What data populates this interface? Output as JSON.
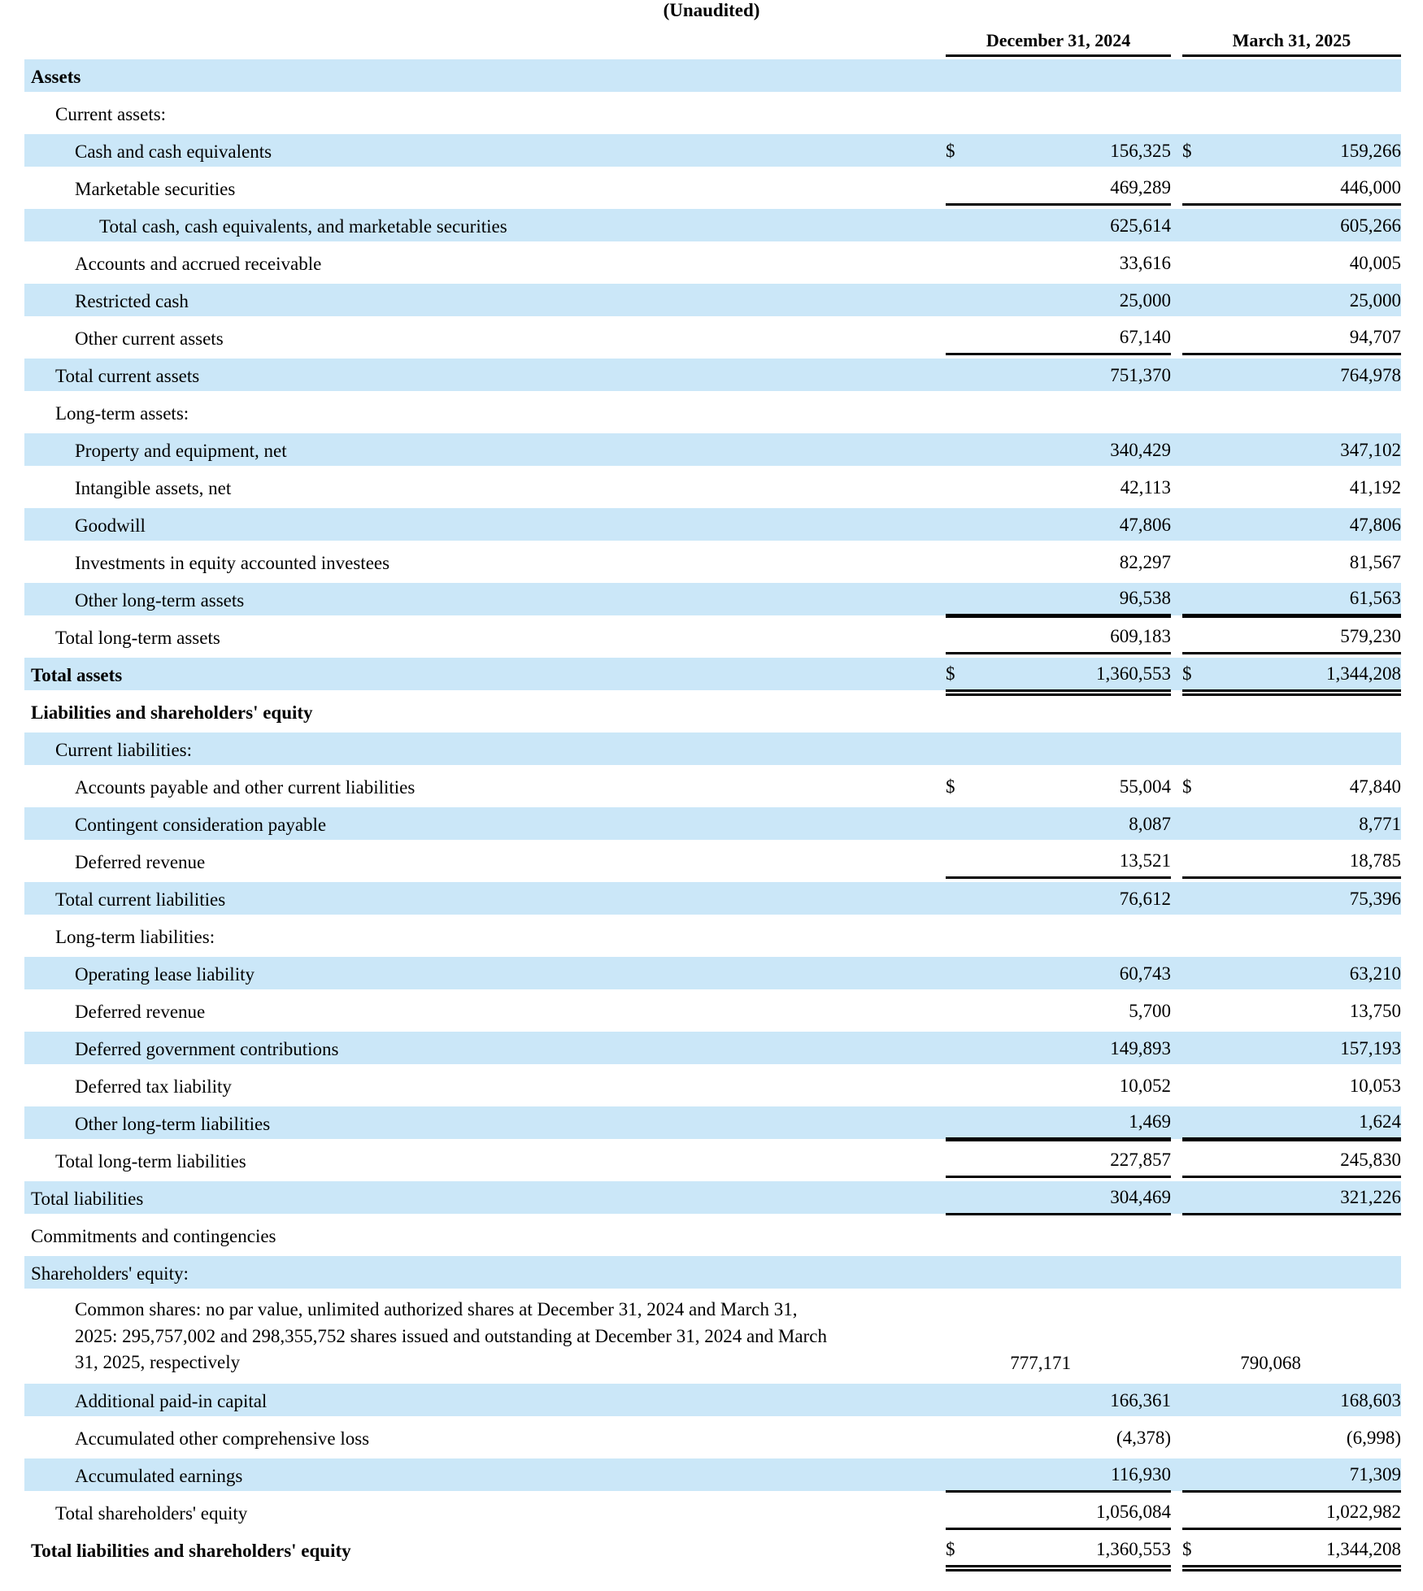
{
  "title": "(Unaudited)",
  "colors": {
    "row_highlight": "#cbe7f8",
    "text": "#000000",
    "rule": "#000000"
  },
  "table": {
    "currency_symbol": "$",
    "columns": [
      "December 31, 2024",
      "March 31, 2025"
    ],
    "rows": [
      {
        "label": "Assets",
        "indent": 0,
        "bold": true,
        "shaded": true,
        "d1": false,
        "v1": "",
        "d2": false,
        "v2": "",
        "rule": null
      },
      {
        "label": "Current assets:",
        "indent": 1,
        "bold": false,
        "shaded": false,
        "d1": false,
        "v1": "",
        "d2": false,
        "v2": "",
        "rule": null
      },
      {
        "label": "Cash and cash equivalents",
        "indent": 2,
        "bold": false,
        "shaded": true,
        "d1": true,
        "v1": "156,325",
        "d2": true,
        "v2": "159,266",
        "rule": null
      },
      {
        "label": "Marketable securities",
        "indent": 2,
        "bold": false,
        "shaded": false,
        "d1": false,
        "v1": "469,289",
        "d2": false,
        "v2": "446,000",
        "rule": "single"
      },
      {
        "label": "Total cash, cash equivalents, and marketable securities",
        "indent": 3,
        "bold": false,
        "shaded": true,
        "d1": false,
        "v1": "625,614",
        "d2": false,
        "v2": "605,266",
        "rule": null
      },
      {
        "label": "Accounts and accrued receivable",
        "indent": 2,
        "bold": false,
        "shaded": false,
        "d1": false,
        "v1": "33,616",
        "d2": false,
        "v2": "40,005",
        "rule": null
      },
      {
        "label": "Restricted cash",
        "indent": 2,
        "bold": false,
        "shaded": true,
        "d1": false,
        "v1": "25,000",
        "d2": false,
        "v2": "25,000",
        "rule": null
      },
      {
        "label": "Other current assets",
        "indent": 2,
        "bold": false,
        "shaded": false,
        "d1": false,
        "v1": "67,140",
        "d2": false,
        "v2": "94,707",
        "rule": "single"
      },
      {
        "label": "Total current assets",
        "indent": 1,
        "bold": false,
        "shaded": true,
        "d1": false,
        "v1": "751,370",
        "d2": false,
        "v2": "764,978",
        "rule": null
      },
      {
        "label": "Long-term assets:",
        "indent": 1,
        "bold": false,
        "shaded": false,
        "d1": false,
        "v1": "",
        "d2": false,
        "v2": "",
        "rule": null
      },
      {
        "label": "Property and equipment, net",
        "indent": 2,
        "bold": false,
        "shaded": true,
        "d1": false,
        "v1": "340,429",
        "d2": false,
        "v2": "347,102",
        "rule": null
      },
      {
        "label": "Intangible assets, net",
        "indent": 2,
        "bold": false,
        "shaded": false,
        "d1": false,
        "v1": "42,113",
        "d2": false,
        "v2": "41,192",
        "rule": null
      },
      {
        "label": "Goodwill",
        "indent": 2,
        "bold": false,
        "shaded": true,
        "d1": false,
        "v1": "47,806",
        "d2": false,
        "v2": "47,806",
        "rule": null
      },
      {
        "label": "Investments in equity accounted investees",
        "indent": 2,
        "bold": false,
        "shaded": false,
        "d1": false,
        "v1": "82,297",
        "d2": false,
        "v2": "81,567",
        "rule": null
      },
      {
        "label": "Other long-term assets",
        "indent": 2,
        "bold": false,
        "shaded": true,
        "d1": false,
        "v1": "96,538",
        "d2": false,
        "v2": "61,563",
        "rule": "thick"
      },
      {
        "label": "Total long-term assets",
        "indent": 1,
        "bold": false,
        "shaded": false,
        "d1": false,
        "v1": "609,183",
        "d2": false,
        "v2": "579,230",
        "rule": "single"
      },
      {
        "label": "Total assets",
        "indent": 0,
        "bold": true,
        "shaded": true,
        "d1": true,
        "v1": "1,360,553",
        "d2": true,
        "v2": "1,344,208",
        "rule": "double"
      },
      {
        "label": "Liabilities and shareholders' equity",
        "indent": 0,
        "bold": true,
        "shaded": false,
        "d1": false,
        "v1": "",
        "d2": false,
        "v2": "",
        "rule": null
      },
      {
        "label": "Current liabilities:",
        "indent": 1,
        "bold": false,
        "shaded": true,
        "d1": false,
        "v1": "",
        "d2": false,
        "v2": "",
        "rule": null
      },
      {
        "label": "Accounts payable and other current liabilities",
        "indent": 2,
        "bold": false,
        "shaded": false,
        "d1": true,
        "v1": "55,004",
        "d2": true,
        "v2": "47,840",
        "rule": null
      },
      {
        "label": "Contingent consideration payable",
        "indent": 2,
        "bold": false,
        "shaded": true,
        "d1": false,
        "v1": "8,087",
        "d2": false,
        "v2": "8,771",
        "rule": null
      },
      {
        "label": "Deferred revenue",
        "indent": 2,
        "bold": false,
        "shaded": false,
        "d1": false,
        "v1": "13,521",
        "d2": false,
        "v2": "18,785",
        "rule": "single"
      },
      {
        "label": "Total current liabilities",
        "indent": 1,
        "bold": false,
        "shaded": true,
        "d1": false,
        "v1": "76,612",
        "d2": false,
        "v2": "75,396",
        "rule": null
      },
      {
        "label": "Long-term liabilities:",
        "indent": 1,
        "bold": false,
        "shaded": false,
        "d1": false,
        "v1": "",
        "d2": false,
        "v2": "",
        "rule": null
      },
      {
        "label": "Operating lease liability",
        "indent": 2,
        "bold": false,
        "shaded": true,
        "d1": false,
        "v1": "60,743",
        "d2": false,
        "v2": "63,210",
        "rule": null
      },
      {
        "label": "Deferred revenue",
        "indent": 2,
        "bold": false,
        "shaded": false,
        "d1": false,
        "v1": "5,700",
        "d2": false,
        "v2": "13,750",
        "rule": null
      },
      {
        "label": "Deferred government contributions",
        "indent": 2,
        "bold": false,
        "shaded": true,
        "d1": false,
        "v1": "149,893",
        "d2": false,
        "v2": "157,193",
        "rule": null
      },
      {
        "label": "Deferred tax liability",
        "indent": 2,
        "bold": false,
        "shaded": false,
        "d1": false,
        "v1": "10,052",
        "d2": false,
        "v2": "10,053",
        "rule": null
      },
      {
        "label": "Other long-term liabilities",
        "indent": 2,
        "bold": false,
        "shaded": true,
        "d1": false,
        "v1": "1,469",
        "d2": false,
        "v2": "1,624",
        "rule": "thick"
      },
      {
        "label": "Total long-term liabilities",
        "indent": 1,
        "bold": false,
        "shaded": false,
        "d1": false,
        "v1": "227,857",
        "d2": false,
        "v2": "245,830",
        "rule": "single"
      },
      {
        "label": "Total liabilities",
        "indent": 0,
        "bold": false,
        "shaded": true,
        "d1": false,
        "v1": "304,469",
        "d2": false,
        "v2": "321,226",
        "rule": "single"
      },
      {
        "label": "Commitments and contingencies",
        "indent": 0,
        "bold": false,
        "shaded": false,
        "d1": false,
        "v1": "",
        "d2": false,
        "v2": "",
        "rule": null
      },
      {
        "label": "Shareholders' equity:",
        "indent": 0,
        "bold": false,
        "shaded": true,
        "d1": false,
        "v1": "",
        "d2": false,
        "v2": "",
        "rule": null
      },
      {
        "label": "Common shares: no par value, unlimited authorized shares at December 31, 2024 and March 31, 2025: 295,757,002 and 298,355,752 shares issued and outstanding at December 31, 2024 and March 31, 2025, respectively",
        "indent": 2,
        "bold": false,
        "shaded": false,
        "d1": false,
        "v1": "777,171",
        "d2": false,
        "v2": "790,068",
        "rule": null,
        "multiline": true
      },
      {
        "label": "Additional paid-in capital",
        "indent": 2,
        "bold": false,
        "shaded": true,
        "d1": false,
        "v1": "166,361",
        "d2": false,
        "v2": "168,603",
        "rule": null
      },
      {
        "label": "Accumulated other comprehensive loss",
        "indent": 2,
        "bold": false,
        "shaded": false,
        "d1": false,
        "v1": "(4,378)",
        "d2": false,
        "v2": "(6,998)",
        "rule": null
      },
      {
        "label": "Accumulated earnings",
        "indent": 2,
        "bold": false,
        "shaded": true,
        "d1": false,
        "v1": "116,930",
        "d2": false,
        "v2": "71,309",
        "rule": "single"
      },
      {
        "label": "Total shareholders' equity",
        "indent": 1,
        "bold": false,
        "shaded": false,
        "d1": false,
        "v1": "1,056,084",
        "d2": false,
        "v2": "1,022,982",
        "rule": "single"
      },
      {
        "label": "Total liabilities and shareholders' equity",
        "indent": 0,
        "bold": true,
        "shaded": false,
        "d1": true,
        "v1": "1,360,553",
        "d2": true,
        "v2": "1,344,208",
        "rule": "double"
      }
    ]
  }
}
